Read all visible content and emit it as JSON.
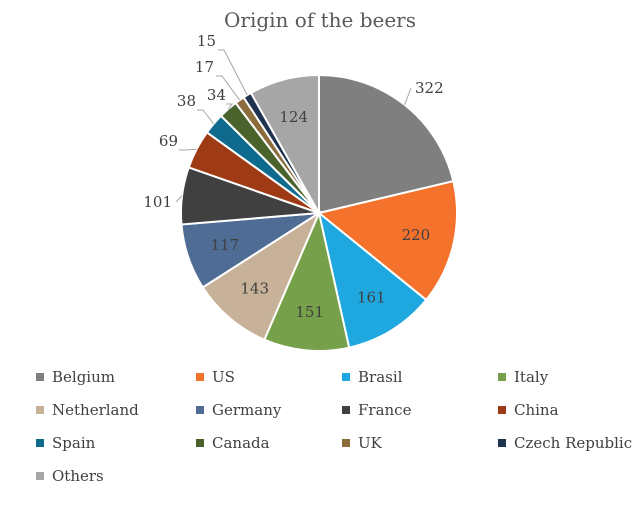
{
  "chart_data": {
    "type": "pie",
    "title": "Origin of the beers",
    "categories": [
      "Belgium",
      "US",
      "Brasil",
      "Italy",
      "Netherland",
      "Germany",
      "France",
      "China",
      "Spain",
      "Canada",
      "UK",
      "Czech Republic",
      "Others"
    ],
    "values": [
      322,
      220,
      161,
      151,
      143,
      117,
      101,
      69,
      38,
      34,
      17,
      15,
      124
    ],
    "colors": [
      "#7f7f7f",
      "#f4722b",
      "#1ea8df",
      "#77a04a",
      "#c7b299",
      "#4f6d94",
      "#404040",
      "#9e3a14",
      "#0f6b8e",
      "#4a632c",
      "#8c6b3c",
      "#1f3350",
      "#a6a6a6"
    ],
    "legend_position": "bottom",
    "start_angle_deg": 0,
    "direction": "clockwise"
  }
}
